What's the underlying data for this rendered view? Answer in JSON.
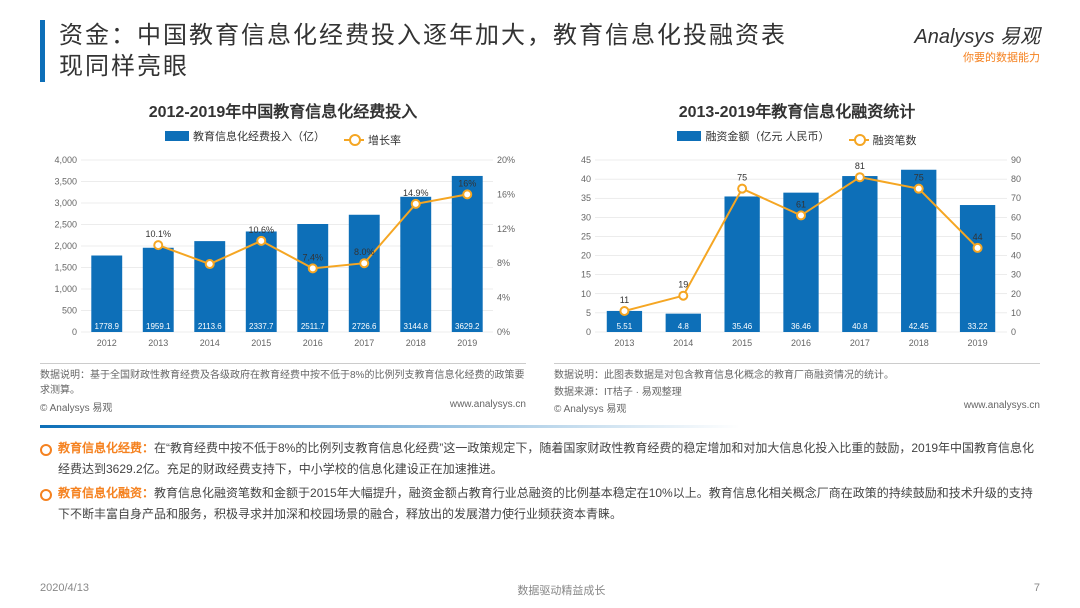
{
  "header": {
    "title": "资金：中国教育信息化经费投入逐年加大，教育信息化投融资表现同样亮眼",
    "logo_brand": "Analysys 易观",
    "logo_tag": "你要的数据能力"
  },
  "chart_left": {
    "title": "2012-2019年中国教育信息化经费投入",
    "legend_bar": "教育信息化经费投入（亿）",
    "legend_line": "增长率",
    "type": "bar+line",
    "categories": [
      "2012",
      "2013",
      "2014",
      "2015",
      "2016",
      "2017",
      "2018",
      "2019"
    ],
    "bar_values": [
      1778.9,
      1959.1,
      2113.6,
      2337.7,
      2511.7,
      2726.6,
      3144.8,
      3629.2
    ],
    "bar_color": "#0d6fb8",
    "line_values_pct": [
      null,
      10.1,
      7.9,
      10.6,
      7.4,
      8.0,
      14.9,
      16.0
    ],
    "line_labels": [
      "",
      "10.1%",
      "",
      "10.6%",
      "7.4%",
      "8.0%",
      "14.9%",
      "16%"
    ],
    "line_color": "#f5a623",
    "y1_max": 4000,
    "y1_step": 500,
    "y2_max": 20,
    "y2_step": 4,
    "note": "数据说明：基于全国财政性教育经费及各级政府在教育经费中按不低于8%的比例列支教育信息化经费的政策要求测算。",
    "src_left": "© Analysys 易观",
    "src_right": "www.analysys.cn"
  },
  "chart_right": {
    "title": "2013-2019年教育信息化融资统计",
    "legend_bar": "融资金额（亿元 人民币）",
    "legend_line": "融资笔数",
    "type": "bar+line",
    "categories": [
      "2013",
      "2014",
      "2015",
      "2016",
      "2017",
      "2018",
      "2019"
    ],
    "bar_values": [
      5.51,
      4.8,
      35.46,
      36.46,
      40.8,
      42.45,
      33.22
    ],
    "bar_color": "#0d6fb8",
    "line_values": [
      11,
      19,
      75,
      61,
      81,
      75,
      44
    ],
    "line_color": "#f5a623",
    "y1_max": 45,
    "y1_step": 5,
    "y2_max": 90,
    "y2_step": 10,
    "note": "数据说明：此图表数据是对包含教育信息化概念的教育厂商融资情况的统计。",
    "src_note": "数据来源：IT桔子 · 易观整理",
    "src_left": "© Analysys 易观",
    "src_right": "www.analysys.cn"
  },
  "bullets": [
    {
      "lead": "教育信息化经费：",
      "text": "在“教育经费中按不低于8%的比例列支教育信息化经费”这一政策规定下，随着国家财政性教育经费的稳定增加和对加大信息化投入比重的鼓励，2019年中国教育信息化经费达到3629.2亿。充足的财政经费支持下，中小学校的信息化建设正在加速推进。"
    },
    {
      "lead": "教育信息化融资：",
      "text": "教育信息化融资笔数和金额于2015年大幅提升，融资金额占教育行业总融资的比例基本稳定在10%以上。教育信息化相关概念厂商在政策的持续鼓励和技术升级的支持下不断丰富自身产品和服务，积极寻求并加深和校园场景的融合，释放出的发展潜力使行业频获资本青睐。"
    }
  ],
  "footer": {
    "date": "2020/4/13",
    "center": "数据驱动精益成长",
    "page": "7"
  },
  "style": {
    "accent_blue": "#0d6fb8",
    "accent_orange": "#f58220",
    "line_gold": "#f5a623",
    "grid_color": "#d9d9d9",
    "title_fontsize": 24,
    "chart_title_fontsize": 16,
    "body_fontsize": 12,
    "axis_fontsize": 9
  }
}
